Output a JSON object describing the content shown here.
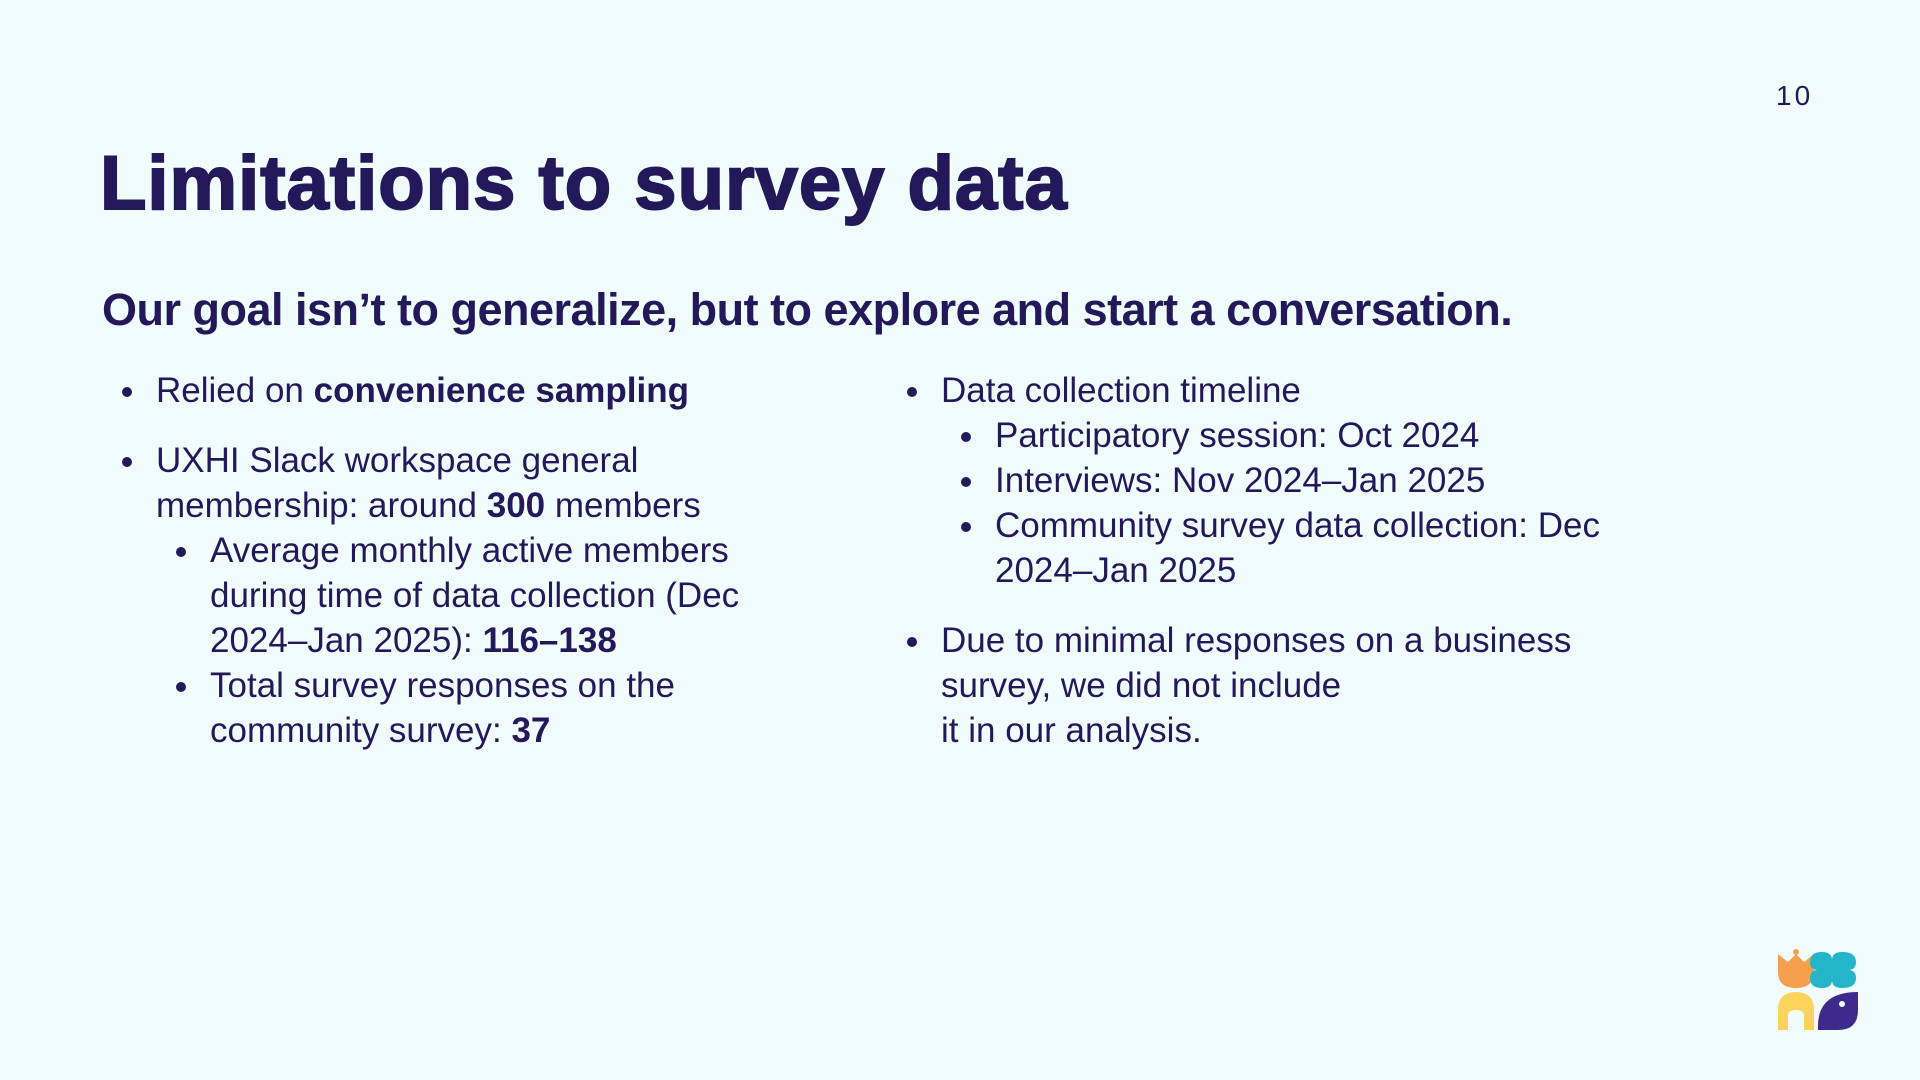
{
  "page_number": "10",
  "title": "Limitations to survey data",
  "subtitle": "Our goal isn’t to generalize, but to explore and start a conversation.",
  "left_column": {
    "item1": {
      "prefix": "Relied on ",
      "bold": "convenience sampling"
    },
    "item2": {
      "prefix": "UXHI Slack workspace general membership: around ",
      "bold": "300",
      "suffix": " members",
      "sub1": {
        "prefix": "Average monthly active members during time of data collection (Dec 2024–Jan 2025): ",
        "bold": "116–138"
      },
      "sub2": {
        "prefix": "Total survey responses on the community survey: ",
        "bold": "37"
      }
    }
  },
  "right_column": {
    "item1": {
      "text": "Data collection timeline",
      "sub": [
        "Participatory session: Oct 2024",
        "Interviews: Nov 2024–Jan 2025",
        "Community survey data collection: Dec 2024–Jan 2025"
      ]
    },
    "item2": {
      "line1": "Due to minimal responses on a business",
      "line2": "survey, we did not include",
      "line3": "it in our analysis."
    }
  },
  "logo": {
    "icon": "uxhi-logo-icon",
    "colors": [
      "#f6a04d",
      "#24b5c9",
      "#fdd25d",
      "#3d2a8c"
    ]
  }
}
